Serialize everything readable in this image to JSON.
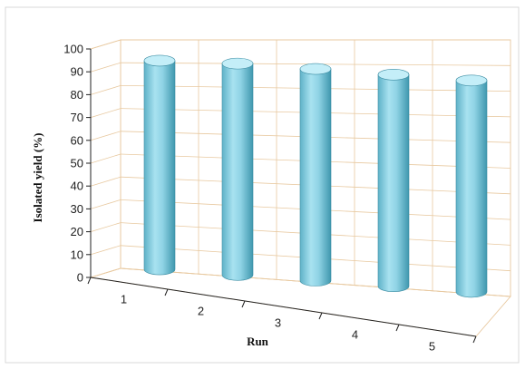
{
  "chart_data": {
    "type": "bar",
    "style": "3d-cylinder",
    "categories": [
      "1",
      "2",
      "3",
      "4",
      "5"
    ],
    "series": [
      {
        "values": [
          91,
          90,
          88,
          86,
          84
        ]
      }
    ],
    "title": "",
    "xlabel": "Run",
    "ylabel": "Isolated yield (%)",
    "ylim": [
      0,
      100
    ],
    "yticks": [
      "0",
      "10",
      "20",
      "30",
      "40",
      "50",
      "60",
      "70",
      "80",
      "90",
      "100"
    ],
    "grid": true,
    "legend": "none",
    "colors": {
      "bar": "#8fd6e8",
      "bar_dark": "#4fa8bf",
      "grid": "#e8c9a0",
      "frame": "#d9d9d9"
    }
  }
}
